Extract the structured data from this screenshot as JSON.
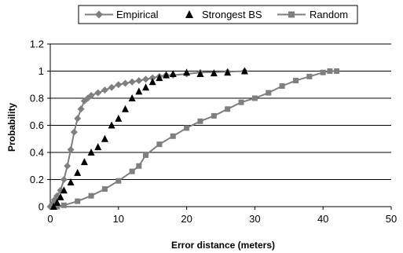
{
  "chart_data": {
    "type": "scatter",
    "xlabel": "Error distance (meters)",
    "ylabel": "Probability",
    "xlim": [
      0,
      50
    ],
    "ylim": [
      0,
      1.2
    ],
    "x_ticks": [
      "0",
      "10",
      "20",
      "30",
      "40",
      "50"
    ],
    "y_ticks": [
      "0",
      "0.2",
      "0.4",
      "0.6",
      "0.8",
      "1",
      "1.2"
    ],
    "grid": "horizontal",
    "legend": "top-center",
    "series": [
      {
        "name": "Empirical",
        "marker": "diamond",
        "color": "#7f7f7f",
        "points": [
          [
            0,
            0
          ],
          [
            0.3,
            0.02
          ],
          [
            0.6,
            0.05
          ],
          [
            1.0,
            0.08
          ],
          [
            1.5,
            0.12
          ],
          [
            2.0,
            0.2
          ],
          [
            2.5,
            0.3
          ],
          [
            3.0,
            0.42
          ],
          [
            3.5,
            0.55
          ],
          [
            4.0,
            0.65
          ],
          [
            4.5,
            0.72
          ],
          [
            5.0,
            0.78
          ],
          [
            5.5,
            0.8
          ],
          [
            6.0,
            0.82
          ],
          [
            7.0,
            0.84
          ],
          [
            8.0,
            0.86
          ],
          [
            9.0,
            0.88
          ],
          [
            10.0,
            0.9
          ],
          [
            11.0,
            0.91
          ],
          [
            12.0,
            0.92
          ],
          [
            13.0,
            0.93
          ],
          [
            14.0,
            0.94
          ],
          [
            15.0,
            0.95
          ],
          [
            16.0,
            0.96
          ],
          [
            17.0,
            0.97
          ],
          [
            18.0,
            0.97
          ],
          [
            20.0,
            0.98
          ],
          [
            22.0,
            0.99
          ],
          [
            26.0,
            0.995
          ],
          [
            28.5,
            1.0
          ]
        ]
      },
      {
        "name": "Strongest BS",
        "marker": "triangle",
        "color": "#000000",
        "points": [
          [
            0.5,
            0.0
          ],
          [
            1.0,
            0.03
          ],
          [
            1.5,
            0.07
          ],
          [
            2.0,
            0.12
          ],
          [
            3.0,
            0.18
          ],
          [
            4.0,
            0.25
          ],
          [
            5.0,
            0.33
          ],
          [
            6.0,
            0.4
          ],
          [
            7.0,
            0.44
          ],
          [
            8.0,
            0.5
          ],
          [
            9.0,
            0.6
          ],
          [
            10.0,
            0.65
          ],
          [
            11.0,
            0.72
          ],
          [
            12.0,
            0.8
          ],
          [
            13.0,
            0.85
          ],
          [
            14.0,
            0.88
          ],
          [
            15.0,
            0.92
          ],
          [
            16.0,
            0.95
          ],
          [
            17.0,
            0.97
          ],
          [
            18.0,
            0.98
          ],
          [
            20.0,
            0.99
          ],
          [
            22.0,
            0.98
          ],
          [
            24.0,
            0.985
          ],
          [
            26.0,
            0.99
          ],
          [
            28.5,
            1.0
          ]
        ]
      },
      {
        "name": "Random",
        "marker": "square",
        "color": "#7f7f7f",
        "points": [
          [
            1,
            0.0
          ],
          [
            2,
            0.01
          ],
          [
            4,
            0.04
          ],
          [
            6,
            0.08
          ],
          [
            8,
            0.13
          ],
          [
            10,
            0.19
          ],
          [
            12,
            0.26
          ],
          [
            13,
            0.3
          ],
          [
            14,
            0.38
          ],
          [
            16,
            0.46
          ],
          [
            18,
            0.52
          ],
          [
            20,
            0.58
          ],
          [
            22,
            0.63
          ],
          [
            24,
            0.67
          ],
          [
            26,
            0.72
          ],
          [
            28,
            0.77
          ],
          [
            30,
            0.8
          ],
          [
            32,
            0.84
          ],
          [
            34,
            0.89
          ],
          [
            36,
            0.93
          ],
          [
            38,
            0.96
          ],
          [
            40,
            0.99
          ],
          [
            41,
            1.0
          ],
          [
            42,
            1.0
          ]
        ]
      }
    ]
  }
}
